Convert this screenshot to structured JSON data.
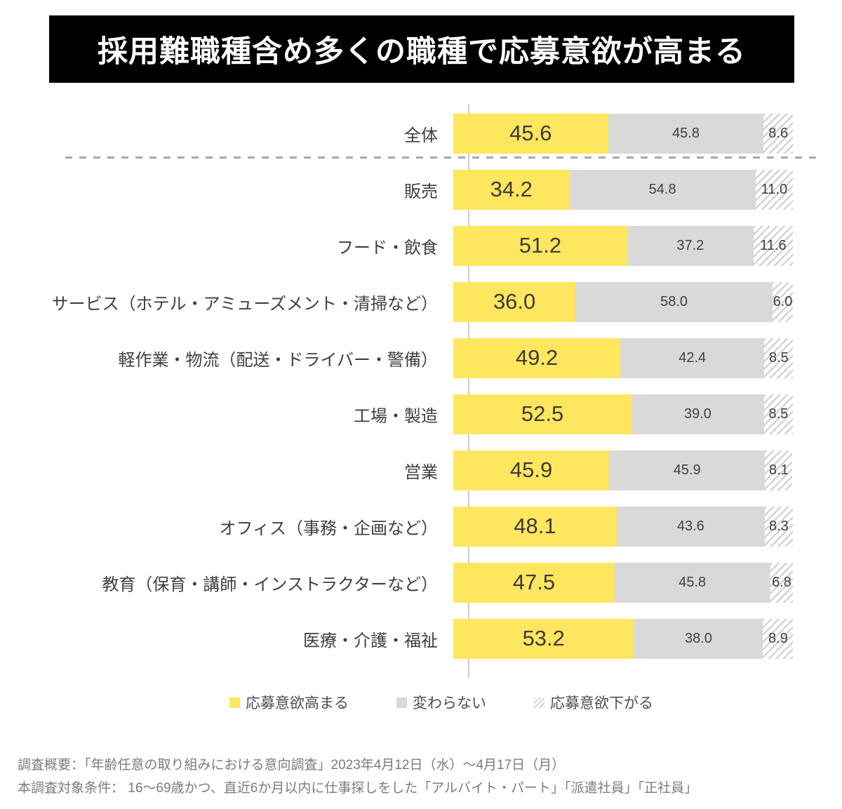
{
  "title": "採用難職種含め多くの職種で応募意欲が高まる",
  "colors": {
    "title_bg": "#000000",
    "title_fg": "#ffffff",
    "increase": "#ffe65f",
    "unchanged": "#d9d9d9",
    "hatch_stripe": "#d3d3d3",
    "label_text": "#3f3f3f",
    "footer_text": "#7b7b7b"
  },
  "chart_data": {
    "type": "bar",
    "orientation": "horizontal",
    "stacked": true,
    "unit": "%",
    "xlim": [
      0,
      100
    ],
    "grid": false,
    "separator_after_category": "全体",
    "categories": [
      "全体",
      "販売",
      "フード・飲食",
      "サービス（ホテル・アミューズメント・清掃など）",
      "軽作業・物流（配送・ドライバー・警備）",
      "工場・製造",
      "営業",
      "オフィス（事務・企画など）",
      "教育（保育・講師・インストラクターなど）",
      "医療・介護・福祉"
    ],
    "series": [
      {
        "name": "応募意欲高まる",
        "values": [
          45.6,
          34.2,
          51.2,
          36.0,
          49.2,
          52.5,
          45.9,
          48.1,
          47.5,
          53.2
        ]
      },
      {
        "name": "変わらない",
        "values": [
          45.8,
          54.8,
          37.2,
          58.0,
          42.4,
          39.0,
          45.9,
          43.6,
          45.8,
          38.0
        ]
      },
      {
        "name": "応募意欲下がる",
        "values": [
          8.6,
          11.0,
          11.6,
          6.0,
          8.5,
          8.5,
          8.1,
          8.3,
          6.8,
          8.9
        ]
      }
    ],
    "legend_position": "bottom"
  },
  "legend": {
    "items": [
      {
        "label": "応募意欲高まる",
        "swatch": "increase"
      },
      {
        "label": "変わらない",
        "swatch": "unchanged"
      },
      {
        "label": "応募意欲下がる",
        "swatch": "decrease"
      }
    ]
  },
  "footer": {
    "line1": "調査概要：「年齢任意の取り組みにおける意向調査」2023年4月12日（水）〜4月17日（月）",
    "line2": "本調査対象条件： 16〜69歳かつ、直近6か月以内に仕事探しをした「アルバイト・パート」「派遣社員」「正社員」"
  }
}
